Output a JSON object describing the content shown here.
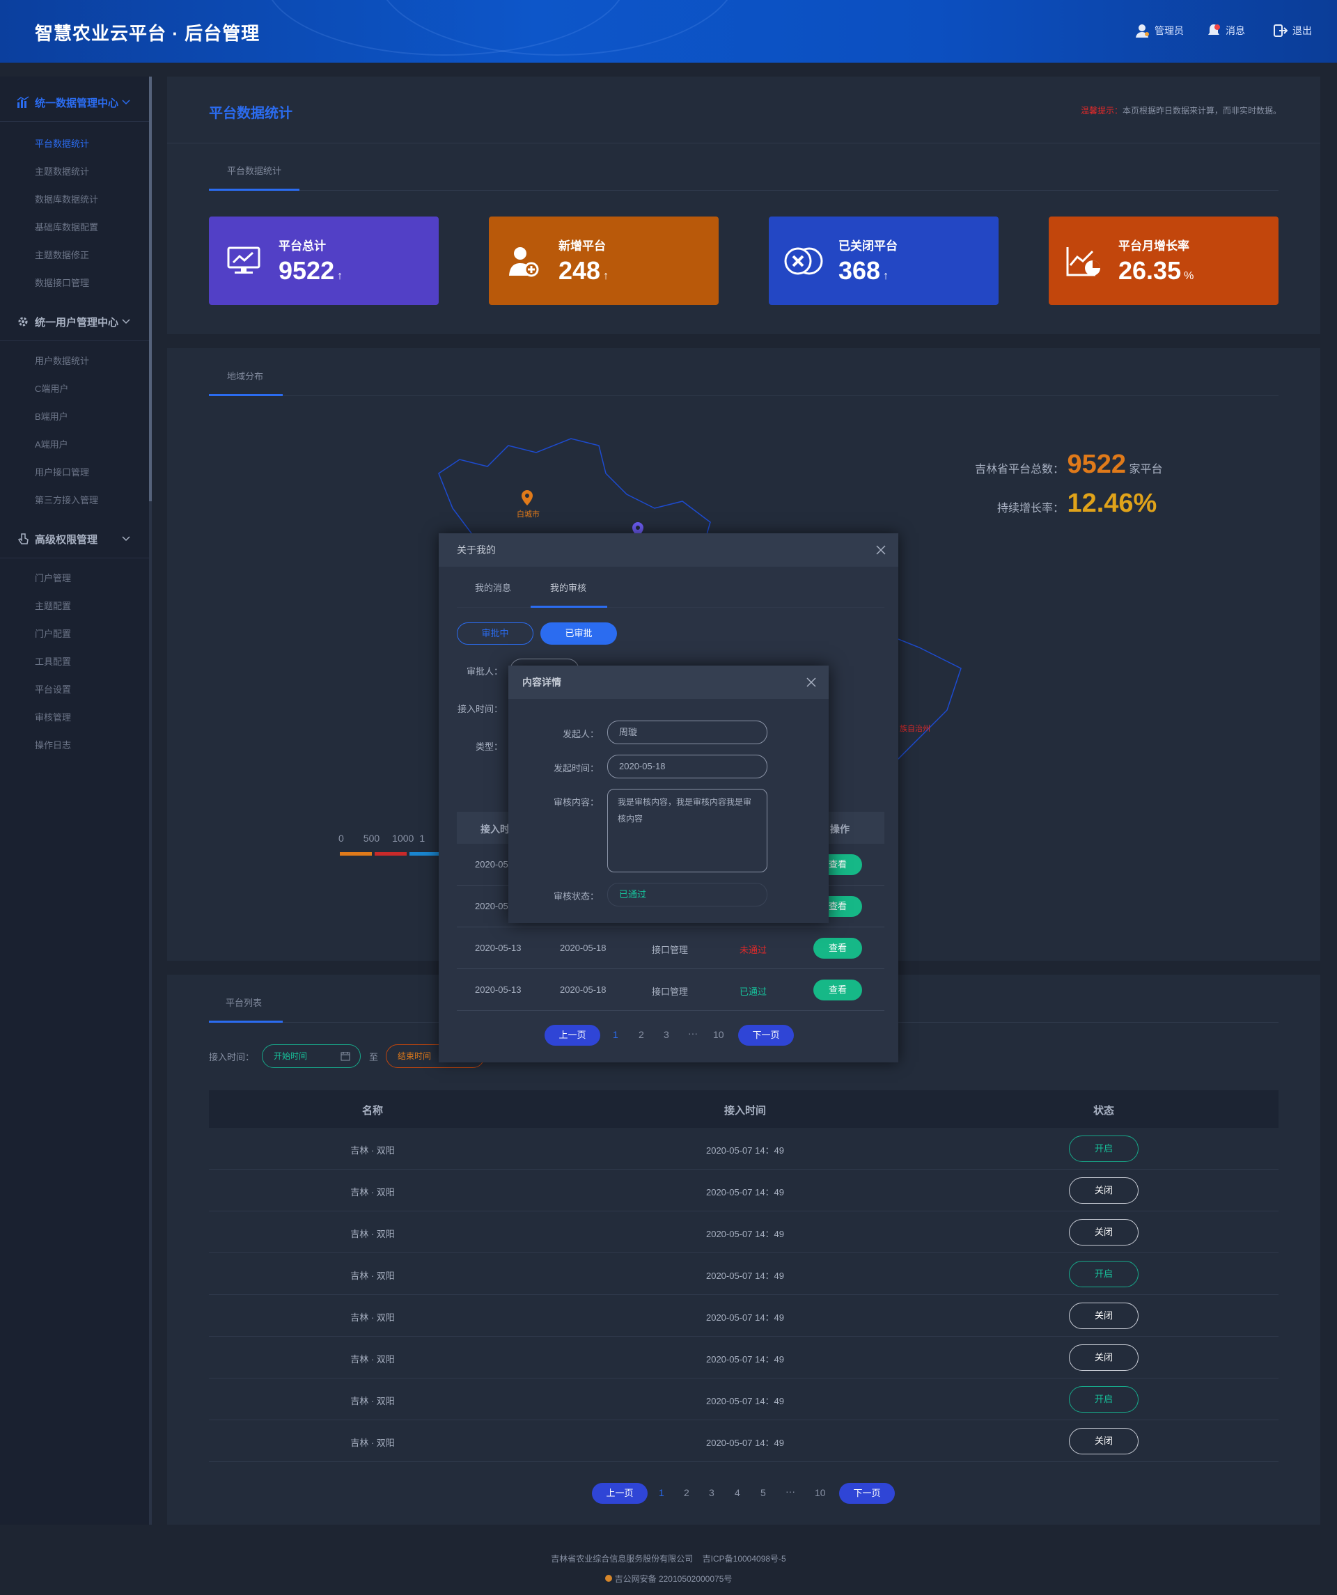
{
  "header": {
    "title": "智慧农业云平台 · 后台管理",
    "user_label": "管理员",
    "message_label": "消息",
    "logout_label": "退出"
  },
  "sidebar": {
    "groups": [
      {
        "label": "统一数据管理中心",
        "items": [
          "平台数据统计",
          "主题数据统计",
          "数据库数据统计",
          "基础库数据配置",
          "主题数据修正",
          "数据接口管理"
        ]
      },
      {
        "label": "统一用户管理中心",
        "items": [
          "用户数据统计",
          "C端用户",
          "B端用户",
          "A端用户",
          "用户接口管理",
          "第三方接入管理"
        ]
      },
      {
        "label": "高级权限管理",
        "items": [
          "门户管理",
          "主题配置",
          "门户配置",
          "工具配置",
          "平台设置",
          "审核管理",
          "操作日志"
        ]
      }
    ]
  },
  "stats": {
    "page_title": "平台数据统计",
    "tip_label": "温馨提示：",
    "tip_text": "本页根据昨日数据来计算，而非实时数据。",
    "tab": "平台数据统计",
    "cards": [
      {
        "label": "平台总计",
        "value": "9522",
        "unit": "↑",
        "color": "#5240c6",
        "icon": "monitor-chart-icon"
      },
      {
        "label": "新增平台",
        "value": "248",
        "unit": "↑",
        "color": "#b9590a",
        "icon": "add-user-icon"
      },
      {
        "label": "已关闭平台",
        "value": "368",
        "unit": "↑",
        "color": "#2347c4",
        "icon": "closed-circle-icon"
      },
      {
        "label": "平台月增长率",
        "value": "26.35",
        "unit": "%",
        "color": "#c2460c",
        "icon": "growth-chart-icon"
      }
    ]
  },
  "map": {
    "tab": "地域分布",
    "total_label": "吉林省平台总数：",
    "total_value": "9522",
    "total_unit": "家平台",
    "growth_label": "持续增长率：",
    "growth_value": "12.46%",
    "city1": "白城市",
    "city2": "族自治州",
    "legend_ticks": [
      "0",
      "500",
      "1000",
      "1"
    ]
  },
  "list": {
    "tab": "平台列表",
    "time_label": "接入时间：",
    "start_placeholder": "开始时间",
    "to_label": "至",
    "end_placeholder": "结束时间",
    "columns": [
      "名称",
      "接入时间",
      "状态"
    ],
    "rows": [
      {
        "name": "吉林 · 双阳",
        "time": "2020-05-07  14：49",
        "status": "开启",
        "on": true
      },
      {
        "name": "吉林 · 双阳",
        "time": "2020-05-07  14：49",
        "status": "关闭",
        "on": false
      },
      {
        "name": "吉林 · 双阳",
        "time": "2020-05-07  14：49",
        "status": "关闭",
        "on": false
      },
      {
        "name": "吉林 · 双阳",
        "time": "2020-05-07  14：49",
        "status": "开启",
        "on": true
      },
      {
        "name": "吉林 · 双阳",
        "time": "2020-05-07  14：49",
        "status": "关闭",
        "on": false
      },
      {
        "name": "吉林 · 双阳",
        "time": "2020-05-07  14：49",
        "status": "关闭",
        "on": false
      },
      {
        "name": "吉林 · 双阳",
        "time": "2020-05-07  14：49",
        "status": "开启",
        "on": true
      },
      {
        "name": "吉林 · 双阳",
        "time": "2020-05-07  14：49",
        "status": "关闭",
        "on": false
      }
    ],
    "pager": {
      "prev": "上一页",
      "next": "下一页",
      "pages": [
        "1",
        "2",
        "3",
        "4",
        "5",
        "···",
        "10"
      ]
    }
  },
  "modal1": {
    "title": "关于我的",
    "tabs": [
      "我的消息",
      "我的审核"
    ],
    "filters": [
      "审批中",
      "已审批"
    ],
    "labels": [
      "审批人：",
      "接入时间：",
      "类型："
    ],
    "col_time": "接入时",
    "col_op": "操作",
    "partial_date": "2020-05",
    "rows": [
      {
        "d1": "2020-05-13",
        "d2": "2020-05-18",
        "type": "接口管理",
        "status": "未通过",
        "bad": true,
        "op": "查看"
      },
      {
        "d1": "2020-05-13",
        "d2": "2020-05-18",
        "type": "接口管理",
        "status": "已通过",
        "bad": false,
        "op": "查看"
      }
    ],
    "view_label": "查看",
    "pager": {
      "prev": "上一页",
      "next": "下一页",
      "pages": [
        "1",
        "2",
        "3",
        "···",
        "10"
      ]
    }
  },
  "modal2": {
    "title": "内容详情",
    "sender_label": "发起人：",
    "sender": "周璇",
    "time_label": "发起时间：",
    "time": "2020-05-18",
    "content_label": "审核内容：",
    "content": "我是审核内容，我是审核内容我是审核内容",
    "status_label": "审核状态：",
    "status": "已通过"
  },
  "footer": {
    "company": "吉林省农业综合信息服务股份有限公司",
    "icp": "吉ICP备10004098号-5",
    "police": "吉公网安备 22010502000075号"
  }
}
